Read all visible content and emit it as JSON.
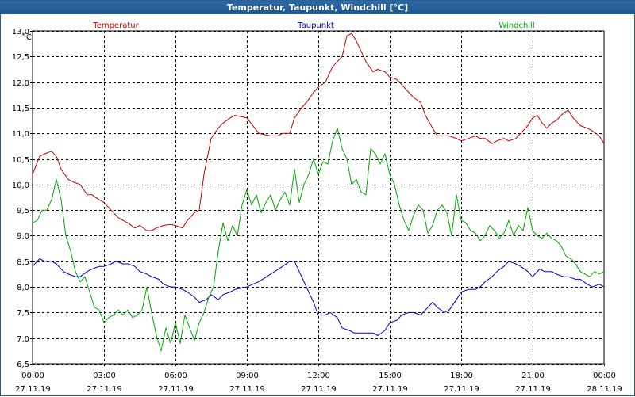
{
  "window": {
    "title": "Temperatur, Taupunkt, Windchill [°C]"
  },
  "chart_data": {
    "type": "line",
    "ylabel": "°C",
    "ylim": [
      6.5,
      13.0
    ],
    "yticks": [
      6.5,
      7.0,
      7.5,
      8.0,
      8.5,
      9.0,
      9.5,
      10.0,
      10.5,
      11.0,
      11.5,
      12.0,
      12.5,
      13.0
    ],
    "ytick_labels": [
      "6,5",
      "7,0",
      "7,5",
      "8,0",
      "8,5",
      "9,0",
      "9,5",
      "10,0",
      "10,5",
      "11,0",
      "11,5",
      "12,0",
      "12,5",
      "13,0"
    ],
    "xlim": [
      0,
      24
    ],
    "xticks": [
      0,
      3,
      6,
      9,
      12,
      15,
      18,
      21,
      24
    ],
    "xtick_times": [
      "00:00",
      "03:00",
      "06:00",
      "09:00",
      "12:00",
      "15:00",
      "18:00",
      "21:00",
      "00:00"
    ],
    "xtick_dates": [
      "27.11.19",
      "27.11.19",
      "27.11.19",
      "27.11.19",
      "27.11.19",
      "27.11.19",
      "27.11.19",
      "27.11.19",
      "28.11.19"
    ],
    "grid": true,
    "legend_position": "top",
    "series": [
      {
        "name": "Temperatur",
        "color": "#cc0000",
        "x": [
          0,
          0.3,
          0.5,
          0.8,
          1.0,
          1.2,
          1.5,
          1.7,
          2.0,
          2.3,
          2.5,
          2.8,
          3.0,
          3.3,
          3.6,
          3.8,
          4.0,
          4.3,
          4.5,
          4.8,
          5.0,
          5.2,
          5.5,
          5.8,
          6.0,
          6.3,
          6.5,
          6.8,
          7.0,
          7.2,
          7.5,
          7.8,
          8.0,
          8.3,
          8.5,
          9.0,
          9.5,
          10.0,
          10.3,
          10.5,
          10.8,
          11.0,
          11.3,
          11.5,
          11.8,
          12.0,
          12.3,
          12.6,
          12.8,
          13.0,
          13.2,
          13.4,
          13.6,
          13.8,
          14.0,
          14.3,
          14.5,
          14.8,
          15.0,
          15.3,
          15.5,
          15.8,
          16.0,
          16.3,
          16.5,
          16.8,
          17.0,
          17.3,
          17.5,
          17.8,
          18.0,
          18.3,
          18.6,
          18.8,
          19.0,
          19.3,
          19.5,
          19.8,
          20.0,
          20.3,
          20.5,
          20.8,
          21.0,
          21.2,
          21.4,
          21.6,
          21.8,
          22.0,
          22.3,
          22.5,
          22.7,
          23.0,
          23.3,
          23.5,
          23.8,
          24.0
        ],
        "values": [
          10.2,
          10.55,
          10.6,
          10.65,
          10.55,
          10.3,
          10.1,
          10.05,
          10.0,
          9.8,
          9.8,
          9.7,
          9.65,
          9.5,
          9.35,
          9.3,
          9.25,
          9.15,
          9.2,
          9.1,
          9.1,
          9.15,
          9.2,
          9.22,
          9.2,
          9.15,
          9.3,
          9.45,
          9.5,
          10.2,
          10.9,
          11.1,
          11.2,
          11.3,
          11.35,
          11.3,
          11.0,
          10.95,
          10.95,
          11.0,
          11.0,
          11.3,
          11.5,
          11.6,
          11.8,
          11.9,
          12.0,
          12.3,
          12.4,
          12.5,
          12.9,
          12.95,
          12.8,
          12.6,
          12.4,
          12.2,
          12.25,
          12.2,
          12.1,
          12.05,
          11.95,
          11.8,
          11.7,
          11.6,
          11.35,
          11.1,
          10.95,
          10.95,
          10.95,
          10.9,
          10.85,
          10.9,
          10.95,
          10.9,
          10.9,
          10.8,
          10.85,
          10.9,
          10.85,
          10.9,
          11.0,
          11.15,
          11.3,
          11.35,
          11.2,
          11.1,
          11.2,
          11.25,
          11.4,
          11.45,
          11.3,
          11.15,
          11.1,
          11.05,
          10.95,
          10.8
        ]
      },
      {
        "name": "Taupunkt",
        "color": "#0000cc",
        "x": [
          0,
          0.3,
          0.5,
          0.8,
          1.0,
          1.3,
          1.5,
          1.8,
          2.0,
          2.3,
          2.5,
          2.8,
          3.0,
          3.3,
          3.5,
          3.8,
          4.0,
          4.3,
          4.5,
          4.8,
          5.0,
          5.3,
          5.5,
          5.8,
          6.0,
          6.3,
          6.5,
          6.8,
          7.0,
          7.3,
          7.5,
          7.8,
          8.0,
          8.3,
          8.5,
          9.0,
          9.5,
          10.0,
          10.5,
          10.8,
          11.0,
          11.3,
          11.5,
          11.8,
          12.0,
          12.3,
          12.5,
          12.8,
          13.0,
          13.3,
          13.5,
          13.8,
          14.0,
          14.3,
          14.5,
          14.8,
          15.0,
          15.3,
          15.5,
          15.8,
          16.0,
          16.3,
          16.5,
          16.8,
          17.0,
          17.3,
          17.5,
          17.8,
          18.0,
          18.3,
          18.6,
          18.8,
          19.0,
          19.3,
          19.5,
          19.8,
          20.0,
          20.3,
          20.5,
          20.8,
          21.0,
          21.3,
          21.5,
          21.8,
          22.0,
          22.3,
          22.5,
          22.8,
          23.0,
          23.3,
          23.5,
          23.8,
          24.0
        ],
        "values": [
          8.4,
          8.55,
          8.5,
          8.5,
          8.45,
          8.3,
          8.25,
          8.2,
          8.2,
          8.3,
          8.35,
          8.4,
          8.4,
          8.45,
          8.5,
          8.45,
          8.45,
          8.4,
          8.3,
          8.25,
          8.2,
          8.15,
          8.05,
          8.0,
          8.0,
          7.95,
          7.9,
          7.8,
          7.7,
          7.75,
          7.85,
          7.75,
          7.85,
          7.9,
          7.95,
          8.0,
          8.1,
          8.25,
          8.4,
          8.5,
          8.5,
          8.2,
          8.0,
          7.7,
          7.45,
          7.45,
          7.5,
          7.4,
          7.2,
          7.15,
          7.1,
          7.1,
          7.1,
          7.1,
          7.05,
          7.15,
          7.3,
          7.35,
          7.45,
          7.5,
          7.5,
          7.45,
          7.55,
          7.7,
          7.6,
          7.5,
          7.55,
          7.75,
          7.9,
          7.95,
          7.95,
          8.0,
          8.1,
          8.2,
          8.3,
          8.4,
          8.5,
          8.45,
          8.4,
          8.3,
          8.2,
          8.35,
          8.3,
          8.3,
          8.25,
          8.2,
          8.2,
          8.15,
          8.15,
          8.05,
          8.0,
          8.05,
          8.0
        ]
      },
      {
        "name": "Windchill",
        "color": "#00aa00",
        "x": [
          0,
          0.2,
          0.4,
          0.6,
          0.8,
          1.0,
          1.2,
          1.4,
          1.6,
          1.8,
          2.0,
          2.2,
          2.4,
          2.6,
          2.8,
          3.0,
          3.2,
          3.4,
          3.6,
          3.8,
          4.0,
          4.2,
          4.4,
          4.6,
          4.8,
          5.0,
          5.2,
          5.4,
          5.6,
          5.8,
          6.0,
          6.2,
          6.4,
          6.6,
          6.8,
          7.0,
          7.2,
          7.4,
          7.6,
          7.8,
          8.0,
          8.2,
          8.4,
          8.6,
          8.8,
          9.0,
          9.2,
          9.4,
          9.6,
          9.8,
          10.0,
          10.2,
          10.4,
          10.6,
          10.8,
          11.0,
          11.2,
          11.4,
          11.6,
          11.8,
          12.0,
          12.2,
          12.4,
          12.6,
          12.8,
          13.0,
          13.2,
          13.4,
          13.6,
          13.8,
          14.0,
          14.2,
          14.4,
          14.6,
          14.8,
          15.0,
          15.2,
          15.4,
          15.6,
          15.8,
          16.0,
          16.2,
          16.4,
          16.6,
          16.8,
          17.0,
          17.2,
          17.4,
          17.6,
          17.8,
          18.0,
          18.2,
          18.4,
          18.6,
          18.8,
          19.0,
          19.2,
          19.4,
          19.6,
          19.8,
          20.0,
          20.2,
          20.4,
          20.6,
          20.8,
          21.0,
          21.2,
          21.4,
          21.6,
          21.8,
          22.0,
          22.2,
          22.4,
          22.6,
          22.8,
          23.0,
          23.2,
          23.4,
          23.6,
          23.8,
          24.0
        ],
        "values": [
          9.25,
          9.3,
          9.5,
          9.5,
          9.7,
          10.1,
          9.7,
          9.0,
          8.7,
          8.3,
          8.1,
          8.2,
          7.9,
          7.6,
          7.55,
          7.3,
          7.4,
          7.45,
          7.55,
          7.45,
          7.55,
          7.4,
          7.45,
          7.55,
          8.0,
          7.5,
          7.05,
          6.75,
          7.2,
          6.9,
          7.3,
          6.9,
          7.45,
          7.2,
          6.95,
          7.3,
          7.5,
          7.8,
          8.0,
          8.7,
          9.25,
          8.9,
          9.2,
          9.0,
          9.6,
          9.9,
          9.6,
          9.8,
          9.45,
          9.65,
          9.8,
          9.5,
          9.7,
          9.85,
          9.6,
          10.3,
          9.65,
          10.0,
          10.2,
          10.5,
          10.2,
          10.45,
          10.4,
          10.85,
          11.1,
          10.7,
          10.5,
          10.0,
          10.1,
          9.85,
          9.8,
          10.7,
          10.6,
          10.4,
          10.6,
          10.2,
          10.0,
          9.6,
          9.3,
          9.1,
          9.4,
          9.6,
          9.5,
          9.05,
          9.2,
          9.5,
          9.6,
          9.45,
          9.0,
          9.8,
          9.3,
          9.25,
          9.1,
          9.05,
          8.9,
          9.0,
          9.2,
          9.1,
          8.95,
          9.05,
          9.3,
          9.0,
          9.2,
          9.1,
          9.55,
          9.1,
          9.0,
          8.95,
          9.05,
          8.95,
          8.9,
          8.8,
          8.6,
          8.55,
          8.45,
          8.3,
          8.25,
          8.2,
          8.3,
          8.25,
          8.3
        ]
      }
    ]
  }
}
